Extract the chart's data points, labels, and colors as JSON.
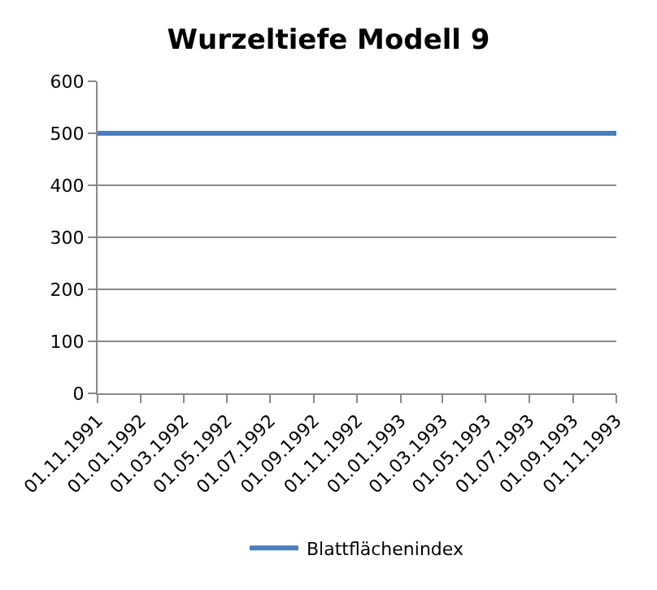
{
  "chart_data": {
    "type": "line",
    "title": "Wurzeltiefe Modell 9",
    "x": [
      "1991-11-01",
      "1993-11-01"
    ],
    "series": [
      {
        "name": "Blattflächenindex",
        "color": "#4a7ebb",
        "values": [
          500,
          500
        ]
      }
    ],
    "xlim": [
      "1991-11-01",
      "1993-11-01"
    ],
    "xticks": [
      {
        "value": "1991-11-01",
        "label": "01.11.1991"
      },
      {
        "value": "1992-01-01",
        "label": "01.01.1992"
      },
      {
        "value": "1992-03-01",
        "label": "01.03.1992"
      },
      {
        "value": "1992-05-01",
        "label": "01.05.1992"
      },
      {
        "value": "1992-07-01",
        "label": "01.07.1992"
      },
      {
        "value": "1992-09-01",
        "label": "01.09.1992"
      },
      {
        "value": "1992-11-01",
        "label": "01.11.1992"
      },
      {
        "value": "1993-01-01",
        "label": "01.01.1993"
      },
      {
        "value": "1993-03-01",
        "label": "01.03.1993"
      },
      {
        "value": "1993-05-01",
        "label": "01.05.1993"
      },
      {
        "value": "1993-07-01",
        "label": "01.07.1993"
      },
      {
        "value": "1993-09-01",
        "label": "01.09.1993"
      },
      {
        "value": "1993-11-01",
        "label": "01.11.1993"
      }
    ],
    "ylim": [
      0,
      600
    ],
    "yticks": [
      0,
      100,
      200,
      300,
      400,
      500,
      600
    ],
    "grid": "y",
    "legend": "bottom",
    "marker": "none",
    "line_style": "solid"
  }
}
